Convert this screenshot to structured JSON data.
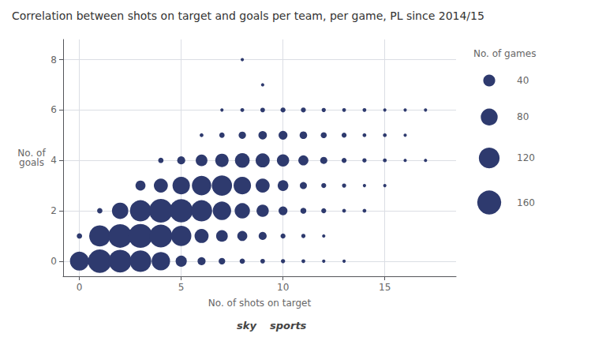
{
  "chart_data": {
    "type": "scatter",
    "title": "Correlation between shots on target and goals per team, per game, PL since 2014/15",
    "x_label": "No. of shots on target",
    "y_label": "No. of\ngoals",
    "color": "#2e3a6e",
    "xlim": [
      -0.8,
      18.5
    ],
    "ylim": [
      -0.6,
      8.8
    ],
    "xticks": [
      0,
      5,
      10,
      15
    ],
    "yticks": [
      0,
      2,
      4,
      6,
      8
    ],
    "grid": true,
    "x": [
      0,
      1,
      2,
      3,
      4,
      5,
      6,
      7,
      8,
      9,
      10,
      11,
      12,
      13,
      0,
      1,
      2,
      3,
      4,
      5,
      6,
      7,
      8,
      9,
      10,
      11,
      12,
      1,
      2,
      3,
      4,
      5,
      6,
      7,
      8,
      9,
      10,
      11,
      12,
      13,
      14,
      3,
      4,
      5,
      6,
      7,
      8,
      9,
      10,
      11,
      12,
      13,
      14,
      15,
      4,
      5,
      6,
      7,
      8,
      9,
      10,
      11,
      12,
      13,
      14,
      15,
      16,
      17,
      6,
      7,
      8,
      9,
      10,
      11,
      12,
      13,
      14,
      15,
      16,
      7,
      8,
      9,
      10,
      11,
      12,
      13,
      14,
      15,
      16,
      17,
      9,
      8
    ],
    "values": [
      0,
      0,
      0,
      0,
      0,
      0,
      0,
      0,
      0,
      0,
      0,
      0,
      0,
      0,
      1,
      1,
      1,
      1,
      1,
      1,
      1,
      1,
      1,
      1,
      1,
      1,
      1,
      2,
      2,
      2,
      2,
      2,
      2,
      2,
      2,
      2,
      2,
      2,
      2,
      2,
      2,
      3,
      3,
      3,
      3,
      3,
      3,
      3,
      3,
      3,
      3,
      3,
      3,
      3,
      4,
      4,
      4,
      4,
      4,
      4,
      4,
      4,
      4,
      4,
      4,
      4,
      4,
      4,
      5,
      5,
      5,
      5,
      5,
      5,
      5,
      5,
      5,
      5,
      5,
      6,
      6,
      6,
      6,
      6,
      6,
      6,
      6,
      6,
      6,
      6,
      7,
      8
    ],
    "sizes": [
      100,
      155,
      145,
      130,
      95,
      35,
      18,
      12,
      8,
      6,
      5,
      4,
      3,
      3,
      8,
      125,
      155,
      160,
      145,
      115,
      55,
      38,
      28,
      18,
      7,
      5,
      3,
      8,
      75,
      125,
      155,
      150,
      125,
      95,
      65,
      42,
      22,
      10,
      7,
      4,
      4,
      28,
      55,
      85,
      105,
      115,
      85,
      55,
      32,
      14,
      7,
      5,
      3,
      3,
      8,
      18,
      38,
      50,
      60,
      55,
      42,
      28,
      14,
      7,
      5,
      4,
      3,
      3,
      4,
      8,
      15,
      20,
      22,
      16,
      10,
      7,
      4,
      4,
      3,
      3,
      4,
      6,
      7,
      7,
      5,
      4,
      4,
      3,
      3,
      3,
      3,
      3
    ],
    "size_legend": {
      "title": "No. of games",
      "sizes": [
        40,
        80,
        120,
        160
      ]
    },
    "annotations": [
      "sky",
      "sports"
    ]
  }
}
